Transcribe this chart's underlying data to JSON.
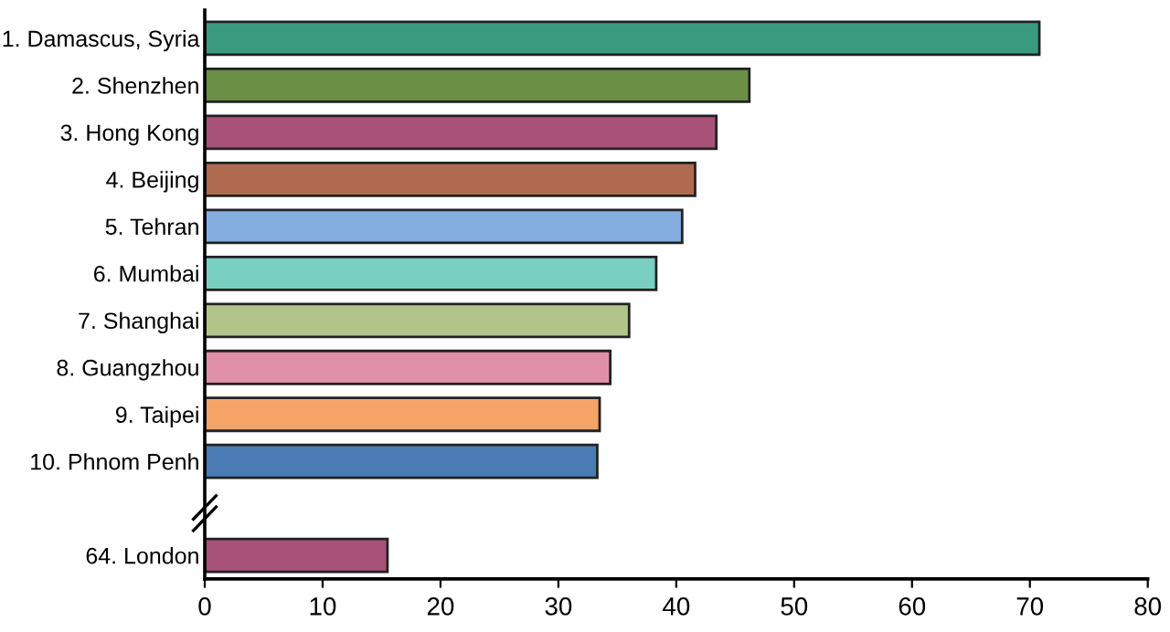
{
  "chart_data": {
    "type": "bar",
    "orientation": "horizontal",
    "categories": [
      "1. Damascus, Syria",
      "2. Shenzhen",
      "3. Hong Kong",
      "4. Beijing",
      "5. Tehran",
      "6. Mumbai",
      "7. Shanghai",
      "8. Guangzhou",
      "9. Taipei",
      "10. Phnom Penh",
      null,
      "64. London"
    ],
    "values": [
      70.8,
      46.2,
      43.4,
      41.6,
      40.5,
      38.3,
      36.0,
      34.4,
      33.5,
      33.3,
      null,
      15.5
    ],
    "colors": [
      "#3a9a80",
      "#6a8f45",
      "#a85277",
      "#b06a50",
      "#84aee0",
      "#79cfc0",
      "#b3c48a",
      "#e08fa8",
      "#f5a468",
      "#4a7bb5",
      null,
      "#a85277"
    ],
    "xlim": [
      0,
      80
    ],
    "xticks": [
      0,
      10,
      20,
      30,
      40,
      50,
      60,
      70,
      80
    ],
    "grid": false
  }
}
